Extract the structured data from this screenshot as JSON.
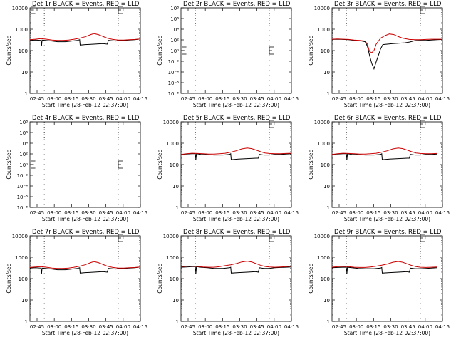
{
  "chart_data": [
    {
      "id": "1r",
      "title": "Det 1r BLACK = Events, RED = LLD",
      "type": "line",
      "xlabel": "Start Time (28-Feb-12 02:37:00)",
      "ylabel": "Counts/sec",
      "yscale": "log",
      "xlim": [
        0,
        100
      ],
      "xticks": [
        "02:45",
        "03:00",
        "03:15",
        "03:30",
        "03:45",
        "04:00",
        "04:15"
      ],
      "yticks": [
        "1",
        "10",
        "100",
        "1000",
        "10000"
      ],
      "series": [
        {
          "name": "BLACK = Events",
          "color": "#000000",
          "x": [
            0,
            5,
            10,
            10.5,
            11,
            14,
            20,
            25,
            32,
            38,
            43,
            45,
            45.5,
            50,
            58,
            66,
            70,
            71,
            74,
            78,
            80,
            85,
            90,
            95,
            100
          ],
          "y": [
            300,
            310,
            300,
            160,
            310,
            300,
            280,
            260,
            260,
            280,
            300,
            320,
            180,
            190,
            200,
            210,
            200,
            300,
            290,
            280,
            300,
            300,
            310,
            320,
            350
          ]
        },
        {
          "name": "RED = LLD",
          "color": "#cc0000",
          "x": [
            0,
            5,
            10,
            15,
            20,
            25,
            30,
            35,
            40,
            45,
            50,
            55,
            58,
            62,
            66,
            70,
            75,
            80,
            85,
            90,
            95,
            100
          ],
          "y": [
            320,
            340,
            360,
            340,
            310,
            300,
            300,
            310,
            340,
            380,
            440,
            560,
            620,
            560,
            460,
            380,
            330,
            310,
            310,
            320,
            330,
            350
          ]
        }
      ],
      "dotted_x": [
        13,
        80
      ],
      "box_markers": [
        [
          1,
          9200
        ],
        [
          80,
          10200
        ]
      ]
    },
    {
      "id": "2r",
      "title": "Det 2r BLACK = Events, RED = LLD",
      "type": "line",
      "xlabel": "Start Time (28-Feb-12 02:37:00)",
      "ylabel": "Counts/sec",
      "yscale": "log",
      "xlim": [
        0,
        100
      ],
      "xticks": [
        "02:45",
        "03:00",
        "03:15",
        "03:30",
        "03:45",
        "04:00",
        "04:15"
      ],
      "yticks": [
        "10⁻⁸",
        "10⁻⁶",
        "10⁻⁴",
        "10⁻²",
        "10⁰",
        "10²",
        "10⁴",
        "10⁶",
        "10⁸"
      ],
      "series": [],
      "dotted_x": [
        13,
        80
      ],
      "box_markers": [
        [
          1,
          1
        ],
        [
          80,
          1
        ]
      ]
    },
    {
      "id": "3r",
      "title": "Det 3r BLACK = Events, RED = LLD",
      "type": "line",
      "xlabel": "Start Time (28-Feb-12 02:37:00)",
      "ylabel": "Counts/sec",
      "yscale": "log",
      "xlim": [
        0,
        100
      ],
      "xticks": [
        "02:45",
        "03:00",
        "03:15",
        "03:30",
        "03:45",
        "04:00",
        "04:15"
      ],
      "yticks": [
        "1",
        "10",
        "100",
        "1000",
        "10000"
      ],
      "series": [
        {
          "name": "BLACK = Events",
          "color": "#000000",
          "x": [
            0,
            5,
            10,
            15,
            20,
            25,
            30,
            32,
            34,
            36,
            38,
            40,
            42,
            44,
            46,
            50,
            55,
            60,
            66,
            70,
            75,
            80,
            85,
            90,
            95,
            100
          ],
          "y": [
            330,
            340,
            330,
            320,
            300,
            290,
            260,
            160,
            60,
            25,
            14,
            30,
            60,
            120,
            190,
            200,
            210,
            220,
            230,
            250,
            290,
            300,
            300,
            310,
            320,
            330
          ]
        },
        {
          "name": "RED = LLD",
          "color": "#cc0000",
          "x": [
            0,
            5,
            10,
            15,
            20,
            25,
            30,
            32,
            34,
            36,
            38,
            40,
            44,
            48,
            52,
            56,
            60,
            64,
            70,
            75,
            80,
            85,
            90,
            95,
            100
          ],
          "y": [
            340,
            350,
            340,
            330,
            310,
            300,
            280,
            200,
            90,
            80,
            100,
            200,
            380,
            500,
            600,
            560,
            450,
            380,
            330,
            320,
            320,
            330,
            340,
            340,
            340
          ]
        }
      ],
      "dotted_x": [
        13,
        80
      ],
      "box_markers": [
        [
          80,
          10200
        ]
      ]
    },
    {
      "id": "4r",
      "title": "Det 4r BLACK = Events, RED = LLD",
      "type": "line",
      "xlabel": "Start Time (28-Feb-12 02:37:00)",
      "ylabel": "Counts/sec",
      "yscale": "log",
      "xlim": [
        0,
        100
      ],
      "xticks": [
        "02:45",
        "03:00",
        "03:15",
        "03:30",
        "03:45",
        "04:00",
        "04:15"
      ],
      "yticks": [
        "10⁻⁸",
        "10⁻⁶",
        "10⁻⁴",
        "10⁻²",
        "10⁰",
        "10²",
        "10⁴",
        "10⁶",
        "10⁸"
      ],
      "series": [],
      "dotted_x": [
        13,
        80
      ],
      "box_markers": [
        [
          1,
          1
        ],
        [
          80,
          1
        ]
      ]
    },
    {
      "id": "5r",
      "title": "Det 5r BLACK = Events, RED = LLD",
      "type": "line",
      "xlabel": "Start Time (28-Feb-12 02:37:00)",
      "ylabel": "Counts/sec",
      "yscale": "log",
      "xlim": [
        0,
        100
      ],
      "xticks": [
        "02:45",
        "03:00",
        "03:15",
        "03:30",
        "03:45",
        "04:00",
        "04:15"
      ],
      "yticks": [
        "1",
        "10",
        "100",
        "1000",
        "10000"
      ],
      "series": [
        {
          "name": "BLACK = Events",
          "color": "#000000",
          "x": [
            0,
            5,
            10,
            13,
            13.5,
            14,
            18,
            24,
            30,
            38,
            44,
            45,
            45.5,
            52,
            60,
            68,
            70,
            71,
            75,
            80,
            85,
            90,
            95,
            100
          ],
          "y": [
            300,
            310,
            320,
            320,
            170,
            320,
            300,
            290,
            280,
            280,
            300,
            320,
            170,
            180,
            190,
            200,
            200,
            300,
            280,
            280,
            300,
            300,
            310,
            320
          ]
        },
        {
          "name": "RED = LLD",
          "color": "#cc0000",
          "x": [
            0,
            5,
            10,
            15,
            20,
            25,
            30,
            35,
            40,
            45,
            50,
            55,
            60,
            64,
            68,
            72,
            76,
            80,
            85,
            90,
            95,
            100
          ],
          "y": [
            300,
            320,
            340,
            330,
            320,
            310,
            310,
            320,
            340,
            380,
            440,
            540,
            600,
            560,
            480,
            400,
            350,
            330,
            320,
            320,
            330,
            340
          ]
        }
      ],
      "dotted_x": [
        13,
        80
      ],
      "box_markers": [
        [
          80,
          10200
        ]
      ]
    },
    {
      "id": "6r",
      "title": "Det 6r BLACK = Events, RED = LLD",
      "type": "line",
      "xlabel": "Start Time (28-Feb-12 02:37:00)",
      "ylabel": "Counts/sec",
      "yscale": "log",
      "xlim": [
        0,
        100
      ],
      "xticks": [
        "02:45",
        "03:00",
        "03:15",
        "03:30",
        "03:45",
        "04:00",
        "04:15"
      ],
      "yticks": [
        "1",
        "10",
        "100",
        "1000",
        "10000"
      ],
      "series": [
        {
          "name": "BLACK = Events",
          "color": "#000000",
          "x": [
            0,
            5,
            10,
            13,
            13.5,
            14,
            18,
            24,
            30,
            38,
            44,
            45,
            45.5,
            52,
            60,
            68,
            70,
            71,
            75,
            80,
            85,
            90,
            95
          ],
          "y": [
            300,
            310,
            320,
            320,
            170,
            320,
            300,
            290,
            280,
            280,
            300,
            320,
            170,
            180,
            190,
            200,
            200,
            300,
            280,
            280,
            300,
            300,
            310
          ]
        },
        {
          "name": "RED = LLD",
          "color": "#cc0000",
          "x": [
            0,
            5,
            10,
            15,
            20,
            25,
            30,
            35,
            40,
            45,
            50,
            55,
            60,
            64,
            68,
            72,
            76,
            80,
            85,
            90,
            95
          ],
          "y": [
            300,
            320,
            340,
            330,
            320,
            310,
            310,
            320,
            340,
            380,
            440,
            540,
            600,
            560,
            480,
            400,
            350,
            330,
            320,
            320,
            330
          ]
        }
      ],
      "dotted_x": [
        13,
        80
      ],
      "box_markers": [
        [
          80,
          10200
        ]
      ]
    },
    {
      "id": "7r",
      "title": "Det 7r BLACK = Events, RED = LLD",
      "type": "line",
      "xlabel": "Start Time (28-Feb-12 02:37:00)",
      "ylabel": "Counts/sec",
      "yscale": "log",
      "xlim": [
        0,
        100
      ],
      "xticks": [
        "02:45",
        "03:00",
        "03:15",
        "03:30",
        "03:45",
        "04:00",
        "04:15"
      ],
      "yticks": [
        "1",
        "10",
        "100",
        "1000",
        "10000"
      ],
      "series": [
        {
          "name": "BLACK = Events",
          "color": "#000000",
          "x": [
            0,
            5,
            10,
            10.5,
            11,
            14,
            20,
            25,
            32,
            38,
            43,
            45,
            45.5,
            50,
            58,
            66,
            70,
            71,
            74,
            78,
            80,
            85,
            90,
            95,
            100
          ],
          "y": [
            310,
            320,
            310,
            160,
            310,
            300,
            280,
            260,
            260,
            280,
            300,
            320,
            180,
            190,
            200,
            210,
            200,
            300,
            290,
            280,
            300,
            300,
            310,
            320,
            350
          ]
        },
        {
          "name": "RED = LLD",
          "color": "#cc0000",
          "x": [
            0,
            5,
            10,
            15,
            20,
            25,
            30,
            35,
            40,
            45,
            50,
            55,
            58,
            62,
            66,
            70,
            75,
            80,
            85,
            90,
            95,
            100
          ],
          "y": [
            330,
            350,
            360,
            340,
            310,
            300,
            300,
            310,
            340,
            380,
            440,
            560,
            620,
            560,
            460,
            380,
            330,
            310,
            310,
            320,
            330,
            350
          ]
        }
      ],
      "dotted_x": [
        13,
        80
      ],
      "box_markers": [
        [
          80,
          10200
        ]
      ]
    },
    {
      "id": "8r",
      "title": "Det 8r BLACK = Events, RED = LLD",
      "type": "line",
      "xlabel": "Start Time (28-Feb-12 02:37:00)",
      "ylabel": "Counts/sec",
      "yscale": "log",
      "xlim": [
        0,
        100
      ],
      "xticks": [
        "02:45",
        "03:00",
        "03:15",
        "03:30",
        "03:45",
        "04:00",
        "04:15"
      ],
      "yticks": [
        "1",
        "10",
        "100",
        "1000",
        "10000"
      ],
      "series": [
        {
          "name": "BLACK = Events",
          "color": "#000000",
          "x": [
            0,
            5,
            10,
            13,
            13.5,
            14,
            18,
            24,
            30,
            38,
            44,
            45,
            45.5,
            52,
            60,
            68,
            70,
            71,
            75,
            80,
            85,
            90,
            95,
            100
          ],
          "y": [
            340,
            350,
            360,
            360,
            170,
            360,
            340,
            320,
            300,
            300,
            320,
            340,
            180,
            190,
            200,
            210,
            200,
            320,
            300,
            300,
            320,
            330,
            340,
            350
          ]
        },
        {
          "name": "RED = LLD",
          "color": "#cc0000",
          "x": [
            0,
            5,
            10,
            15,
            20,
            25,
            30,
            35,
            40,
            45,
            50,
            55,
            60,
            64,
            68,
            72,
            76,
            80,
            85,
            90,
            95,
            100
          ],
          "y": [
            360,
            380,
            380,
            370,
            350,
            340,
            340,
            360,
            400,
            440,
            500,
            600,
            650,
            600,
            500,
            420,
            370,
            350,
            340,
            350,
            360,
            380
          ]
        }
      ],
      "dotted_x": [
        13,
        80
      ],
      "box_markers": [
        [
          80,
          10200
        ]
      ]
    },
    {
      "id": "9r",
      "title": "Det 9r BLACK = Events, RED = LLD",
      "type": "line",
      "xlabel": "Start Time (28-Feb-12 02:37:00)",
      "ylabel": "Counts/sec",
      "yscale": "log",
      "xlim": [
        0,
        100
      ],
      "xticks": [
        "02:45",
        "03:00",
        "03:15",
        "03:30",
        "03:45",
        "04:00",
        "04:15"
      ],
      "yticks": [
        "1",
        "10",
        "100",
        "1000",
        "10000"
      ],
      "series": [
        {
          "name": "BLACK = Events",
          "color": "#000000",
          "x": [
            0,
            5,
            10,
            13,
            13.5,
            14,
            18,
            24,
            30,
            38,
            44,
            45,
            45.5,
            52,
            60,
            68,
            70,
            71,
            75,
            80,
            85,
            90,
            95
          ],
          "y": [
            320,
            330,
            340,
            340,
            170,
            340,
            320,
            300,
            290,
            290,
            310,
            330,
            180,
            190,
            200,
            210,
            200,
            310,
            290,
            290,
            300,
            310,
            320
          ]
        },
        {
          "name": "RED = LLD",
          "color": "#cc0000",
          "x": [
            0,
            5,
            10,
            15,
            20,
            25,
            30,
            35,
            40,
            45,
            50,
            55,
            60,
            64,
            68,
            72,
            76,
            80,
            85,
            90,
            95
          ],
          "y": [
            340,
            360,
            370,
            360,
            340,
            330,
            330,
            350,
            380,
            420,
            480,
            580,
            630,
            580,
            490,
            410,
            360,
            340,
            330,
            340,
            350
          ]
        }
      ],
      "dotted_x": [
        13,
        80
      ],
      "box_markers": [
        [
          80,
          10200
        ]
      ]
    }
  ]
}
